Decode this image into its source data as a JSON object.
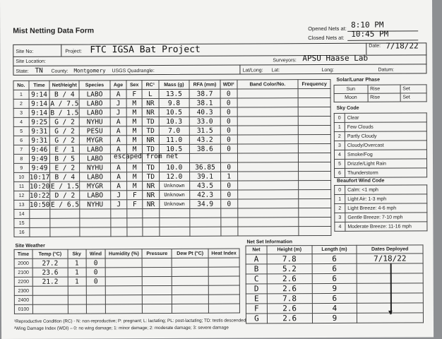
{
  "form": {
    "title": "Mist Netting Data Form",
    "opened_label": "Opened Nets at:",
    "opened_value": "8:10 PM",
    "closed_label": "Closed Nets at:",
    "closed_value": "10:45 PM"
  },
  "header": {
    "site_no_label": "Site No:",
    "project_label": "Project:",
    "project_value": "FTC IGSA Bat Project",
    "date_label": "Date:",
    "date_value": "7/18/22",
    "site_location_label": "Site Location:",
    "surveyors_label": "Surveyors:",
    "surveyors_value": "APSU Haase Lab",
    "state_label": "State:",
    "state_value": "TN",
    "county_label": "County:",
    "county_value": "Montgomery",
    "usgs_label": "USGS Quadrangle:",
    "latlong_label": "Lat/Long:",
    "lat_label": "Lat:",
    "long_label": "Long:",
    "datum_label": "Datum:"
  },
  "captures": {
    "headers": [
      "No.",
      "Time",
      "Net/Height",
      "Species",
      "Age",
      "Sex",
      "RC¹",
      "Mass (g)",
      "RFA (mm)",
      "WDI²",
      "Band Color/No.",
      "Frequency"
    ],
    "rows": [
      [
        "1",
        "9:14",
        "B / 4",
        "LABO",
        "A",
        "F",
        "L",
        "13.5",
        "38.7",
        "0",
        "",
        ""
      ],
      [
        "2",
        "9:14",
        "A / 7.5",
        "LABO",
        "J",
        "M",
        "NR",
        "9.8",
        "38.1",
        "0",
        "",
        ""
      ],
      [
        "3",
        "9:14",
        "B / 1.5",
        "LABO",
        "J",
        "M",
        "NR",
        "10.5",
        "40.3",
        "0",
        "",
        ""
      ],
      [
        "4",
        "9:25",
        "G / 2",
        "NYHU",
        "A",
        "M",
        "TD",
        "10.3",
        "33.0",
        "0",
        "",
        ""
      ],
      [
        "5",
        "9:31",
        "G / 2",
        "PESU",
        "A",
        "M",
        "TD",
        "7.0",
        "31.5",
        "0",
        "",
        ""
      ],
      [
        "6",
        "9:31",
        "G / 2",
        "MYGR",
        "A",
        "M",
        "NR",
        "11.0",
        "43.2",
        "0",
        "",
        ""
      ],
      [
        "7",
        "9:46",
        "E / 1",
        "LABO",
        "A",
        "M",
        "TD",
        "10.5",
        "38.6",
        "0",
        "",
        ""
      ],
      [
        "8",
        "9:49",
        "B / 5",
        "LABO",
        "",
        "",
        "",
        "",
        "",
        "",
        "",
        ""
      ],
      [
        "9",
        "9:49",
        "E / 2",
        "NYHU",
        "A",
        "M",
        "TD",
        "10.0",
        "36.85",
        "0",
        "",
        ""
      ],
      [
        "10",
        "10:17",
        "B / 4",
        "LABO",
        "A",
        "M",
        "TD",
        "12.0",
        "39.1",
        "1",
        "",
        ""
      ],
      [
        "11",
        "10:20",
        "E / 1.5",
        "MYGR",
        "A",
        "M",
        "NR",
        "Unknown",
        "43.5",
        "0",
        "",
        ""
      ],
      [
        "12",
        "10:22",
        "D / 2",
        "LABO",
        "J",
        "F",
        "NR",
        "Unknown",
        "42.3",
        "0",
        "",
        ""
      ],
      [
        "13",
        "10:50",
        "E / 6.5",
        "NYHU",
        "J",
        "F",
        "NR",
        "Unknown",
        "34.9",
        "0",
        "",
        ""
      ],
      [
        "14",
        "",
        "",
        "",
        "",
        "",
        "",
        "",
        "",
        "",
        "",
        ""
      ],
      [
        "15",
        "",
        "",
        "",
        "",
        "",
        "",
        "",
        "",
        "",
        "",
        ""
      ],
      [
        "16",
        "",
        "",
        "",
        "",
        "",
        "",
        "",
        "",
        "",
        "",
        ""
      ]
    ],
    "escaped_note": "escaped from net"
  },
  "solar": {
    "title": "Solar/Lunar Phase",
    "rows": [
      [
        "Sun",
        "Rise",
        "Set"
      ],
      [
        "Moon",
        "Rise",
        "Set"
      ]
    ]
  },
  "sky": {
    "title": "Sky Code",
    "rows": [
      [
        "0",
        "Clear"
      ],
      [
        "1",
        "Few Clouds"
      ],
      [
        "2",
        "Partly Cloudy"
      ],
      [
        "3",
        "Cloudy/Overcast"
      ],
      [
        "4",
        "Smoke/Fog"
      ],
      [
        "5",
        "Drizzle/Light Rain"
      ],
      [
        "6",
        "Thunderstorm"
      ]
    ]
  },
  "beaufort": {
    "title": "Beaufort Wind Code",
    "rows": [
      [
        "0",
        "Calm: <1 mph"
      ],
      [
        "1",
        "Light Air: 1-3 mph"
      ],
      [
        "2",
        "Light Breeze: 4-6 mph"
      ],
      [
        "3",
        "Gentle Breeze: 7-10 mph"
      ],
      [
        "4",
        "Moderate Breeze: 11-16 mph"
      ]
    ]
  },
  "weather": {
    "title": "Site Weather",
    "headers": [
      "Time",
      "Temp (°C)",
      "Sky",
      "Wind",
      "Humidity (%)",
      "Pressure",
      "Dew Pt (°C)",
      "Heat Index"
    ],
    "rows": [
      [
        "2000",
        "27.2",
        "1",
        "0",
        "",
        "",
        "",
        ""
      ],
      [
        "2100",
        "23.6",
        "1",
        "0",
        "",
        "",
        "",
        ""
      ],
      [
        "2200",
        "21.2",
        "1",
        "0",
        "",
        "",
        "",
        ""
      ],
      [
        "2300",
        "",
        "",
        "",
        "",
        "",
        "",
        ""
      ],
      [
        "2400",
        "",
        "",
        "",
        "",
        "",
        "",
        ""
      ],
      [
        "0100",
        "",
        "",
        "",
        "",
        "",
        "",
        ""
      ]
    ]
  },
  "nets": {
    "title": "Net Set Information",
    "headers": [
      "Net",
      "Height (m)",
      "Length (m)",
      "Dates Deployed"
    ],
    "rows": [
      [
        "A",
        "7.8",
        "6",
        "7/18/22"
      ],
      [
        "B",
        "5.2",
        "6",
        ""
      ],
      [
        "C",
        "2.6",
        "6",
        ""
      ],
      [
        "D",
        "2.6",
        "9",
        ""
      ],
      [
        "E",
        "7.8",
        "6",
        ""
      ],
      [
        "F",
        "2.6",
        "4",
        ""
      ],
      [
        "G",
        "2.6",
        "9",
        ""
      ]
    ]
  },
  "footnotes": {
    "note1": "¹Reproductive Condition (RC) - N: non-reproductive; P: pregnant; L: lactating; PL: post-lactating; TD: testis descended",
    "note2": "²Wing Damage Index (WDI) – 0: no wing damage; 1: minor damage; 2: moderate damage; 3: severe damage"
  }
}
